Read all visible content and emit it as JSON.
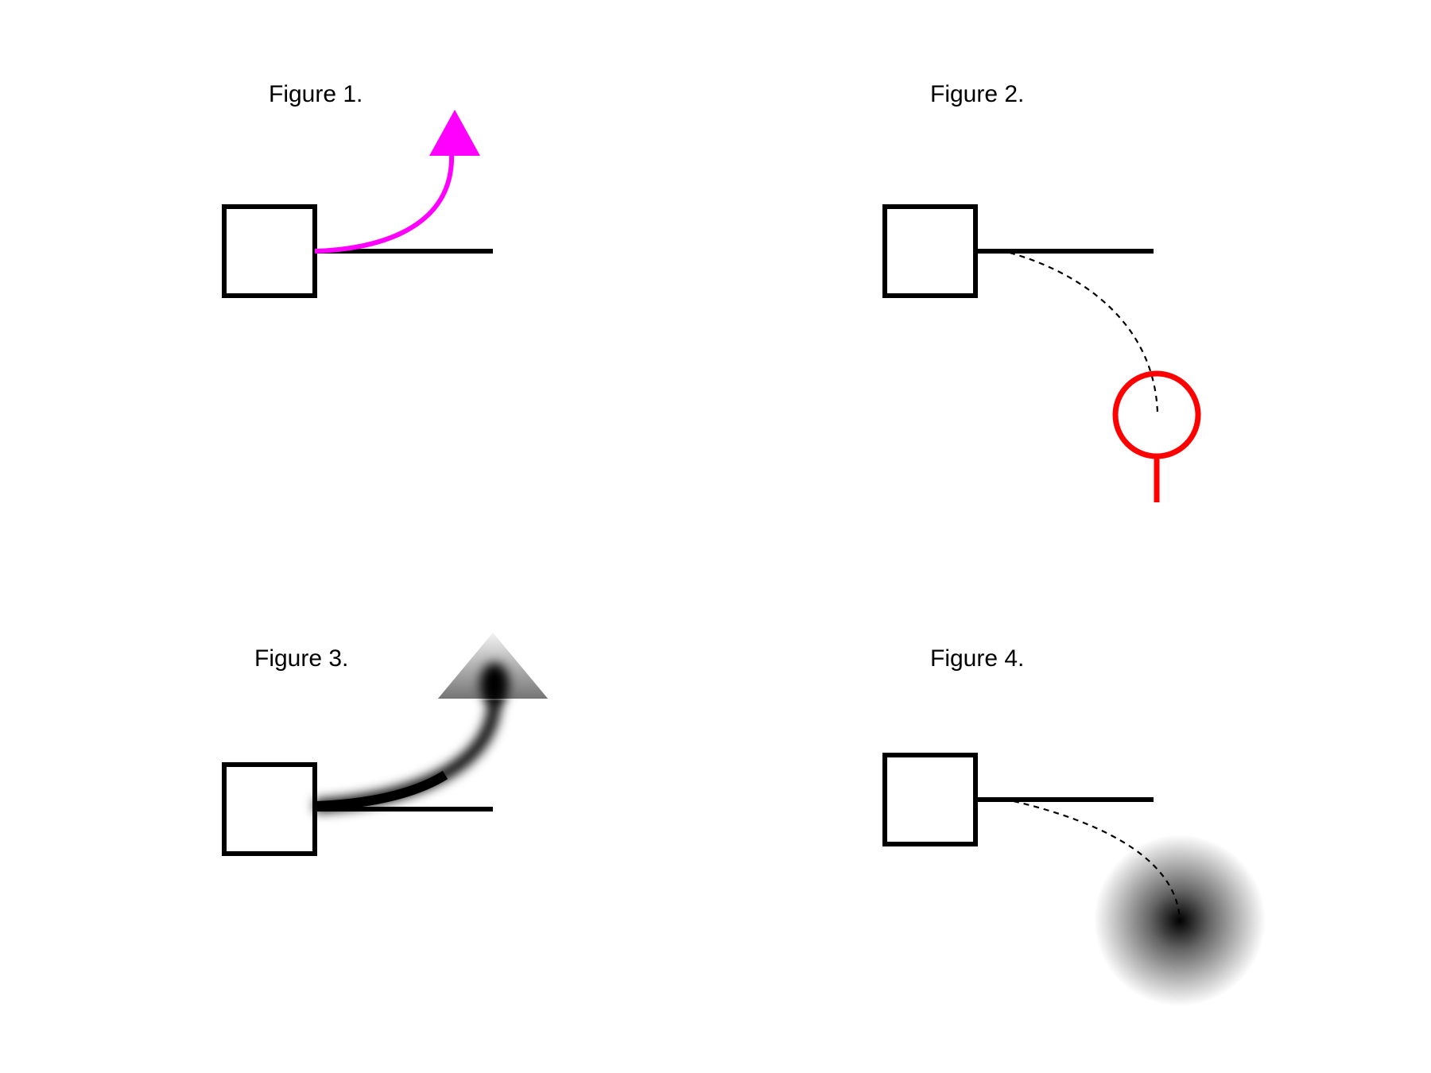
{
  "figures": [
    {
      "label": "Figure  1.",
      "accent_color": "#ff00ff",
      "marker": "arrow-icon"
    },
    {
      "label": "Figure  2.",
      "accent_color": "#ff0000",
      "marker": "pin-icon"
    },
    {
      "label": "Figure  3.",
      "accent_color": "#000000",
      "marker": "blurred-arrow-icon"
    },
    {
      "label": "Figure  4.",
      "accent_color": "#000000",
      "marker": "blurred-dot-icon"
    }
  ]
}
